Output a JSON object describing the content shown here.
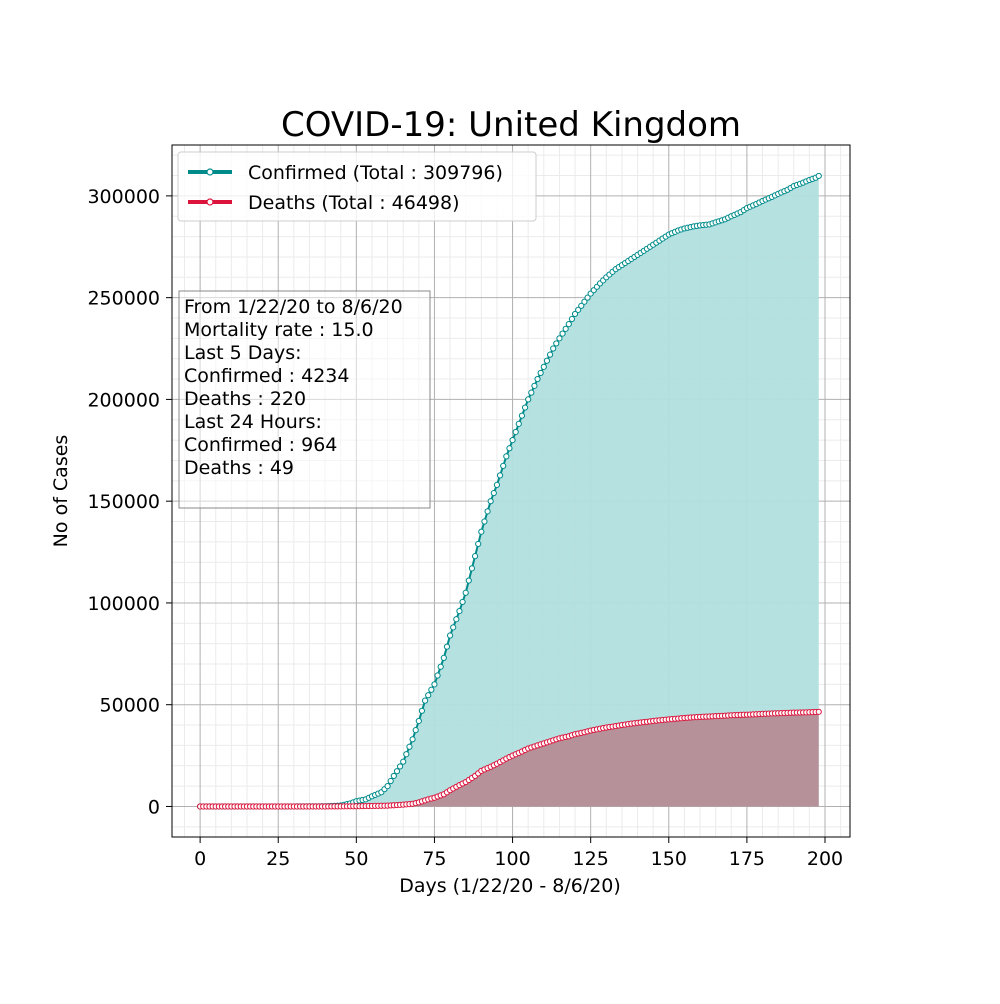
{
  "chart_data": {
    "type": "area",
    "title": "COVID-19: United Kingdom",
    "xlabel": "Days (1/22/20 - 8/6/20)",
    "ylabel": "No of Cases",
    "xlim": [
      -9,
      208
    ],
    "ylim": [
      -15000,
      325000
    ],
    "xticks": [
      0,
      25,
      50,
      75,
      100,
      125,
      150,
      175,
      200
    ],
    "yticks": [
      0,
      50000,
      100000,
      150000,
      200000,
      250000,
      300000
    ],
    "grid": true,
    "minor_grid": true,
    "legend_position": "top-left",
    "series": [
      {
        "name": "Confirmed (Total : 309796)",
        "color": "#008b8b",
        "fill": "#b2dfdf",
        "points": [
          [
            0,
            0
          ],
          [
            10,
            2
          ],
          [
            20,
            9
          ],
          [
            30,
            20
          ],
          [
            40,
            100
          ],
          [
            45,
            460
          ],
          [
            48,
            1500
          ],
          [
            50,
            2600
          ],
          [
            53,
            3500
          ],
          [
            55,
            5000
          ],
          [
            58,
            7000
          ],
          [
            60,
            10000
          ],
          [
            62,
            15000
          ],
          [
            65,
            22000
          ],
          [
            68,
            33000
          ],
          [
            70,
            42000
          ],
          [
            72,
            52000
          ],
          [
            75,
            60000
          ],
          [
            78,
            73000
          ],
          [
            80,
            84000
          ],
          [
            83,
            96000
          ],
          [
            85,
            105000
          ],
          [
            88,
            123000
          ],
          [
            90,
            135000
          ],
          [
            93,
            150000
          ],
          [
            95,
            158000
          ],
          [
            98,
            172000
          ],
          [
            100,
            180000
          ],
          [
            103,
            192000
          ],
          [
            105,
            200000
          ],
          [
            108,
            210000
          ],
          [
            110,
            216000
          ],
          [
            113,
            225000
          ],
          [
            115,
            230000
          ],
          [
            118,
            237000
          ],
          [
            120,
            242000
          ],
          [
            123,
            248000
          ],
          [
            125,
            252000
          ],
          [
            128,
            257000
          ],
          [
            130,
            260000
          ],
          [
            133,
            264000
          ],
          [
            135,
            266000
          ],
          [
            138,
            269000
          ],
          [
            140,
            271000
          ],
          [
            143,
            274000
          ],
          [
            145,
            276000
          ],
          [
            148,
            279000
          ],
          [
            150,
            281000
          ],
          [
            153,
            283000
          ],
          [
            155,
            284000
          ],
          [
            158,
            285000
          ],
          [
            160,
            285500
          ],
          [
            163,
            286000
          ],
          [
            165,
            287000
          ],
          [
            168,
            288500
          ],
          [
            170,
            290000
          ],
          [
            173,
            292000
          ],
          [
            175,
            294000
          ],
          [
            178,
            296000
          ],
          [
            180,
            297500
          ],
          [
            183,
            299500
          ],
          [
            185,
            301000
          ],
          [
            188,
            303000
          ],
          [
            190,
            304800
          ],
          [
            193,
            306500
          ],
          [
            195,
            307800
          ],
          [
            197,
            308900
          ],
          [
            198,
            309796
          ]
        ]
      },
      {
        "name": "Deaths (Total : 46498)",
        "color": "#dc143c",
        "fill": "#b68c96",
        "points": [
          [
            0,
            0
          ],
          [
            40,
            0
          ],
          [
            50,
            100
          ],
          [
            55,
            250
          ],
          [
            60,
            400
          ],
          [
            62,
            600
          ],
          [
            65,
            900
          ],
          [
            68,
            1300
          ],
          [
            70,
            2000
          ],
          [
            73,
            3500
          ],
          [
            75,
            4300
          ],
          [
            78,
            6000
          ],
          [
            80,
            8000
          ],
          [
            83,
            10500
          ],
          [
            85,
            12000
          ],
          [
            88,
            15000
          ],
          [
            90,
            17500
          ],
          [
            93,
            19500
          ],
          [
            95,
            21000
          ],
          [
            98,
            23500
          ],
          [
            100,
            25000
          ],
          [
            103,
            27000
          ],
          [
            105,
            28500
          ],
          [
            108,
            30000
          ],
          [
            110,
            31000
          ],
          [
            113,
            32500
          ],
          [
            115,
            33500
          ],
          [
            118,
            34500
          ],
          [
            120,
            35500
          ],
          [
            123,
            36500
          ],
          [
            125,
            37300
          ],
          [
            128,
            38200
          ],
          [
            130,
            38800
          ],
          [
            133,
            39500
          ],
          [
            135,
            40000
          ],
          [
            138,
            40700
          ],
          [
            140,
            41100
          ],
          [
            143,
            41600
          ],
          [
            145,
            42000
          ],
          [
            148,
            42500
          ],
          [
            150,
            42800
          ],
          [
            153,
            43200
          ],
          [
            155,
            43500
          ],
          [
            158,
            43800
          ],
          [
            160,
            44000
          ],
          [
            163,
            44200
          ],
          [
            165,
            44400
          ],
          [
            168,
            44600
          ],
          [
            170,
            44800
          ],
          [
            173,
            45000
          ],
          [
            175,
            45100
          ],
          [
            178,
            45300
          ],
          [
            180,
            45500
          ],
          [
            183,
            45700
          ],
          [
            185,
            45800
          ],
          [
            188,
            46000
          ],
          [
            190,
            46100
          ],
          [
            193,
            46200
          ],
          [
            195,
            46300
          ],
          [
            197,
            46400
          ],
          [
            198,
            46498
          ]
        ]
      }
    ],
    "annotation_lines": [
      "From 1/22/20 to 8/6/20",
      "Mortality rate : 15.0",
      "Last 5 Days:",
      "Confirmed : 4234",
      "Deaths : 220",
      "Last 24 Hours:",
      "Confirmed : 964",
      "Deaths : 49"
    ]
  }
}
